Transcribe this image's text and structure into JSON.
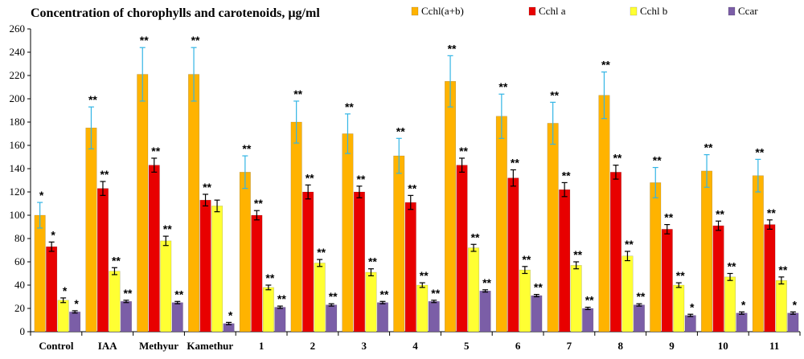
{
  "chart_data": {
    "type": "bar",
    "title": "Concentration of chorophylls and carotenoids, µg/ml",
    "xlabel": "",
    "ylabel": "",
    "ylim": [
      0,
      260
    ],
    "yticks": [
      0,
      20,
      40,
      60,
      80,
      100,
      120,
      140,
      160,
      180,
      200,
      220,
      240,
      260
    ],
    "grid": false,
    "legend_position": "top-right",
    "categories": [
      "Control",
      "IAA",
      "Methyur",
      "Kamethur",
      "1",
      "2",
      "3",
      "4",
      "5",
      "6",
      "7",
      "8",
      "9",
      "10",
      "11"
    ],
    "series": [
      {
        "name": "Cchl(a+b)",
        "color": "#FFB300",
        "error_color": "#33B5E5",
        "values": [
          100,
          175,
          221,
          221,
          137,
          180,
          170,
          151,
          215,
          185,
          179,
          203,
          128,
          138,
          134
        ],
        "errors": [
          11,
          18,
          23,
          23,
          14,
          18,
          17,
          15,
          22,
          19,
          18,
          20,
          13,
          14,
          14
        ],
        "significance": [
          "*",
          "**",
          "**",
          "**",
          "**",
          "**",
          "**",
          "**",
          "**",
          "**",
          "**",
          "**",
          "**",
          "**",
          "**"
        ]
      },
      {
        "name": "Cchl a",
        "color": "#E80000",
        "error_color": "#000000",
        "values": [
          73,
          123,
          143,
          113,
          100,
          120,
          120,
          111,
          143,
          132,
          122,
          137,
          88,
          91,
          92
        ],
        "errors": [
          4,
          6,
          6,
          5,
          4,
          6,
          5,
          6,
          6,
          7,
          6,
          6,
          4,
          4,
          4
        ],
        "significance": [
          "*",
          "**",
          "**",
          "**",
          "**",
          "**",
          "**",
          "**",
          "**",
          "**",
          "**",
          "**",
          "**",
          "**",
          "**"
        ]
      },
      {
        "name": "Cchl b",
        "color": "#FFFF33",
        "error_color": "#000000",
        "values": [
          27,
          52,
          78,
          108,
          38,
          59,
          51,
          40,
          72,
          53,
          57,
          65,
          40,
          47,
          44
        ],
        "errors": [
          2,
          3,
          4,
          5,
          2,
          3,
          3,
          2,
          3,
          3,
          3,
          4,
          2,
          3,
          3
        ],
        "significance": [
          "*",
          "**",
          "**",
          "",
          "**",
          "**",
          "**",
          "**",
          "**",
          "**",
          "**",
          "**",
          "**",
          "**",
          "**"
        ]
      },
      {
        "name": "Ccar",
        "color": "#7B5EA7",
        "error_color": "#000000",
        "values": [
          17,
          26,
          25,
          7,
          21,
          23,
          25,
          26,
          35,
          31,
          20,
          23,
          14,
          16,
          16
        ],
        "errors": [
          1,
          1,
          1,
          1,
          1,
          1,
          1,
          1,
          1,
          1,
          1,
          1,
          1,
          1,
          1
        ],
        "significance": [
          "*",
          "**",
          "**",
          "*",
          "**",
          "**",
          "**",
          "**",
          "**",
          "**",
          "**",
          "**",
          "*",
          "*",
          "*"
        ]
      }
    ]
  }
}
